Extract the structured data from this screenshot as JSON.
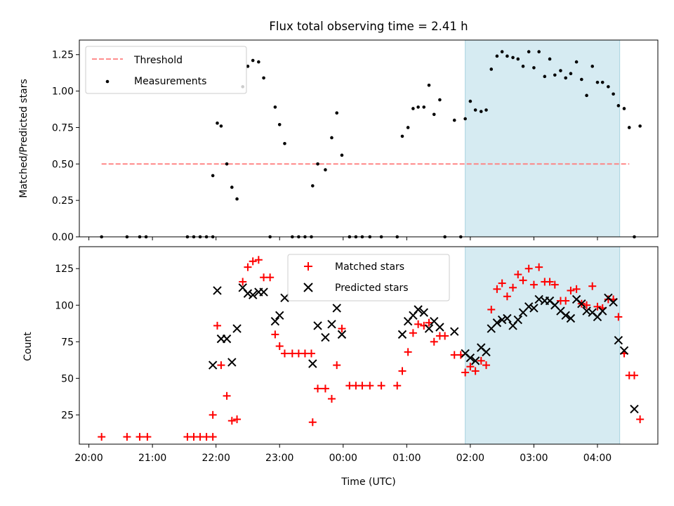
{
  "colors": {
    "threshold": "#ff7f7f",
    "measurement": "#000000",
    "matched": "#ff0000",
    "predicted": "#000000",
    "span": "#add8e6"
  },
  "chart_data": [
    {
      "type": "scatter",
      "title": "Flux total observing time = 2.41 h",
      "xlabel": "",
      "ylabel": "Matched/Predicted stars",
      "xlim": [
        19.85,
        28.95
      ],
      "ylim": [
        0,
        1.35
      ],
      "yticks": [
        "0.00",
        "0.25",
        "0.50",
        "0.75",
        "1.00",
        "1.25"
      ],
      "grid": false,
      "legend_position": "top-left",
      "highlight_span": [
        25.92,
        28.35
      ],
      "threshold": {
        "name": "Threshold",
        "value": 0.5,
        "x": [
          20.2,
          28.5
        ]
      },
      "series": [
        {
          "name": "Measurements",
          "points": [
            [
              20.2,
              0
            ],
            [
              20.6,
              0
            ],
            [
              20.8,
              0
            ],
            [
              20.9,
              0
            ],
            [
              21.55,
              0
            ],
            [
              21.65,
              0
            ],
            [
              21.75,
              0
            ],
            [
              21.85,
              0
            ],
            [
              21.95,
              0
            ],
            [
              21.95,
              0.42
            ],
            [
              22.02,
              0.78
            ],
            [
              22.08,
              0.76
            ],
            [
              22.17,
              0.5
            ],
            [
              22.25,
              0.34
            ],
            [
              22.33,
              0.26
            ],
            [
              22.42,
              1.03
            ],
            [
              22.5,
              1.17
            ],
            [
              22.58,
              1.21
            ],
            [
              22.67,
              1.2
            ],
            [
              22.75,
              1.09
            ],
            [
              22.85,
              0
            ],
            [
              22.93,
              0.89
            ],
            [
              23.0,
              0.77
            ],
            [
              23.08,
              0.64
            ],
            [
              23.2,
              0
            ],
            [
              23.3,
              0
            ],
            [
              23.4,
              0
            ],
            [
              23.5,
              0
            ],
            [
              23.52,
              0.35
            ],
            [
              23.6,
              0.5
            ],
            [
              23.72,
              0.46
            ],
            [
              23.82,
              0.68
            ],
            [
              23.9,
              0.85
            ],
            [
              23.98,
              0.56
            ],
            [
              24.1,
              0
            ],
            [
              24.2,
              0
            ],
            [
              24.3,
              0
            ],
            [
              24.42,
              0
            ],
            [
              24.6,
              0
            ],
            [
              24.85,
              0
            ],
            [
              24.93,
              0.69
            ],
            [
              25.02,
              0.75
            ],
            [
              25.1,
              0.88
            ],
            [
              25.18,
              0.89
            ],
            [
              25.27,
              0.89
            ],
            [
              25.35,
              1.04
            ],
            [
              25.43,
              0.84
            ],
            [
              25.52,
              0.94
            ],
            [
              25.6,
              0
            ],
            [
              25.75,
              0.8
            ],
            [
              25.85,
              0
            ],
            [
              25.92,
              0.81
            ],
            [
              26.0,
              0.93
            ],
            [
              26.08,
              0.87
            ],
            [
              26.17,
              0.86
            ],
            [
              26.25,
              0.87
            ],
            [
              26.33,
              1.15
            ],
            [
              26.42,
              1.24
            ],
            [
              26.5,
              1.27
            ],
            [
              26.58,
              1.24
            ],
            [
              26.67,
              1.23
            ],
            [
              26.75,
              1.22
            ],
            [
              26.83,
              1.17
            ],
            [
              26.92,
              1.27
            ],
            [
              27.0,
              1.16
            ],
            [
              27.08,
              1.27
            ],
            [
              27.17,
              1.1
            ],
            [
              27.25,
              1.22
            ],
            [
              27.33,
              1.11
            ],
            [
              27.42,
              1.14
            ],
            [
              27.5,
              1.09
            ],
            [
              27.58,
              1.12
            ],
            [
              27.67,
              1.2
            ],
            [
              27.75,
              1.08
            ],
            [
              27.83,
              0.97
            ],
            [
              27.92,
              1.17
            ],
            [
              28.0,
              1.06
            ],
            [
              28.08,
              1.06
            ],
            [
              28.17,
              1.03
            ],
            [
              28.25,
              0.98
            ],
            [
              28.33,
              0.9
            ],
            [
              28.42,
              0.88
            ],
            [
              28.5,
              0.75
            ],
            [
              28.58,
              0
            ],
            [
              28.67,
              0.76
            ]
          ]
        }
      ]
    },
    {
      "type": "scatter",
      "title": "",
      "xlabel": "Time (UTC)",
      "ylabel": "Count",
      "xlim": [
        19.85,
        28.95
      ],
      "ylim": [
        5,
        140
      ],
      "xticks": [
        {
          "value": 20,
          "label": "20:00"
        },
        {
          "value": 21,
          "label": "21:00"
        },
        {
          "value": 22,
          "label": "22:00"
        },
        {
          "value": 23,
          "label": "23:00"
        },
        {
          "value": 24,
          "label": "00:00"
        },
        {
          "value": 25,
          "label": "01:00"
        },
        {
          "value": 26,
          "label": "02:00"
        },
        {
          "value": 27,
          "label": "03:00"
        },
        {
          "value": 28,
          "label": "04:00"
        }
      ],
      "yticks": [
        "25",
        "50",
        "75",
        "100",
        "125"
      ],
      "grid": false,
      "legend_position": "top-center",
      "highlight_span": [
        25.92,
        28.35
      ],
      "series": [
        {
          "name": "Matched stars",
          "marker": "+",
          "points": [
            [
              20.2,
              10
            ],
            [
              20.6,
              10
            ],
            [
              20.8,
              10
            ],
            [
              20.92,
              10
            ],
            [
              21.55,
              10
            ],
            [
              21.65,
              10
            ],
            [
              21.75,
              10
            ],
            [
              21.85,
              10
            ],
            [
              21.95,
              10
            ],
            [
              21.95,
              25
            ],
            [
              22.02,
              86
            ],
            [
              22.08,
              59
            ],
            [
              22.17,
              38
            ],
            [
              22.25,
              21
            ],
            [
              22.33,
              22
            ],
            [
              22.42,
              116
            ],
            [
              22.5,
              126
            ],
            [
              22.58,
              130
            ],
            [
              22.67,
              131
            ],
            [
              22.75,
              119
            ],
            [
              22.85,
              119
            ],
            [
              22.93,
              80
            ],
            [
              23.0,
              72
            ],
            [
              23.08,
              67
            ],
            [
              23.2,
              67
            ],
            [
              23.3,
              67
            ],
            [
              23.4,
              67
            ],
            [
              23.5,
              67
            ],
            [
              23.52,
              20
            ],
            [
              23.6,
              43
            ],
            [
              23.72,
              43
            ],
            [
              23.82,
              36
            ],
            [
              23.9,
              59
            ],
            [
              23.98,
              84
            ],
            [
              24.1,
              45
            ],
            [
              24.2,
              45
            ],
            [
              24.3,
              45
            ],
            [
              24.42,
              45
            ],
            [
              24.6,
              45
            ],
            [
              24.85,
              45
            ],
            [
              24.93,
              55
            ],
            [
              25.02,
              68
            ],
            [
              25.1,
              81
            ],
            [
              25.18,
              87
            ],
            [
              25.27,
              86
            ],
            [
              25.35,
              88
            ],
            [
              25.43,
              75
            ],
            [
              25.52,
              79
            ],
            [
              25.6,
              79
            ],
            [
              25.75,
              66
            ],
            [
              25.85,
              66
            ],
            [
              25.92,
              54
            ],
            [
              26.0,
              58
            ],
            [
              26.08,
              55
            ],
            [
              26.17,
              62
            ],
            [
              26.25,
              59
            ],
            [
              26.33,
              97
            ],
            [
              26.42,
              111
            ],
            [
              26.5,
              115
            ],
            [
              26.58,
              106
            ],
            [
              26.67,
              112
            ],
            [
              26.75,
              121
            ],
            [
              26.83,
              117
            ],
            [
              26.92,
              125
            ],
            [
              27.0,
              114
            ],
            [
              27.08,
              126
            ],
            [
              27.17,
              116
            ],
            [
              27.25,
              116
            ],
            [
              27.33,
              114
            ],
            [
              27.42,
              103
            ],
            [
              27.5,
              103
            ],
            [
              27.58,
              110
            ],
            [
              27.67,
              111
            ],
            [
              27.75,
              101
            ],
            [
              27.83,
              100
            ],
            [
              27.92,
              113
            ],
            [
              28.0,
              99
            ],
            [
              28.08,
              98
            ],
            [
              28.17,
              104
            ],
            [
              28.25,
              104
            ],
            [
              28.33,
              92
            ],
            [
              28.42,
              67
            ],
            [
              28.5,
              52
            ],
            [
              28.58,
              52
            ],
            [
              28.67,
              22
            ]
          ]
        },
        {
          "name": "Predicted stars",
          "marker": "x",
          "points": [
            [
              21.95,
              59
            ],
            [
              22.02,
              110
            ],
            [
              22.08,
              77
            ],
            [
              22.17,
              77
            ],
            [
              22.25,
              61
            ],
            [
              22.33,
              84
            ],
            [
              22.42,
              112
            ],
            [
              22.5,
              108
            ],
            [
              22.58,
              107
            ],
            [
              22.67,
              109
            ],
            [
              22.75,
              109
            ],
            [
              22.93,
              89
            ],
            [
              23.0,
              93
            ],
            [
              23.08,
              105
            ],
            [
              23.52,
              60
            ],
            [
              23.6,
              86
            ],
            [
              23.72,
              78
            ],
            [
              23.82,
              87
            ],
            [
              23.9,
              98
            ],
            [
              23.98,
              80
            ],
            [
              24.93,
              80
            ],
            [
              25.02,
              89
            ],
            [
              25.1,
              93
            ],
            [
              25.18,
              97
            ],
            [
              25.27,
              95
            ],
            [
              25.35,
              84
            ],
            [
              25.43,
              89
            ],
            [
              25.52,
              85
            ],
            [
              25.75,
              82
            ],
            [
              25.92,
              67
            ],
            [
              26.0,
              64
            ],
            [
              26.08,
              62
            ],
            [
              26.17,
              71
            ],
            [
              26.25,
              68
            ],
            [
              26.33,
              84
            ],
            [
              26.42,
              88
            ],
            [
              26.5,
              90
            ],
            [
              26.58,
              91
            ],
            [
              26.67,
              86
            ],
            [
              26.75,
              90
            ],
            [
              26.83,
              95
            ],
            [
              26.92,
              99
            ],
            [
              27.0,
              98
            ],
            [
              27.08,
              104
            ],
            [
              27.17,
              103
            ],
            [
              27.25,
              103
            ],
            [
              27.33,
              100
            ],
            [
              27.42,
              96
            ],
            [
              27.5,
              93
            ],
            [
              27.58,
              91
            ],
            [
              27.67,
              104
            ],
            [
              27.75,
              101
            ],
            [
              27.83,
              96
            ],
            [
              27.92,
              95
            ],
            [
              28.0,
              92
            ],
            [
              28.08,
              96
            ],
            [
              28.17,
              105
            ],
            [
              28.25,
              102
            ],
            [
              28.33,
              76
            ],
            [
              28.42,
              69
            ],
            [
              28.58,
              29
            ]
          ]
        }
      ]
    }
  ]
}
